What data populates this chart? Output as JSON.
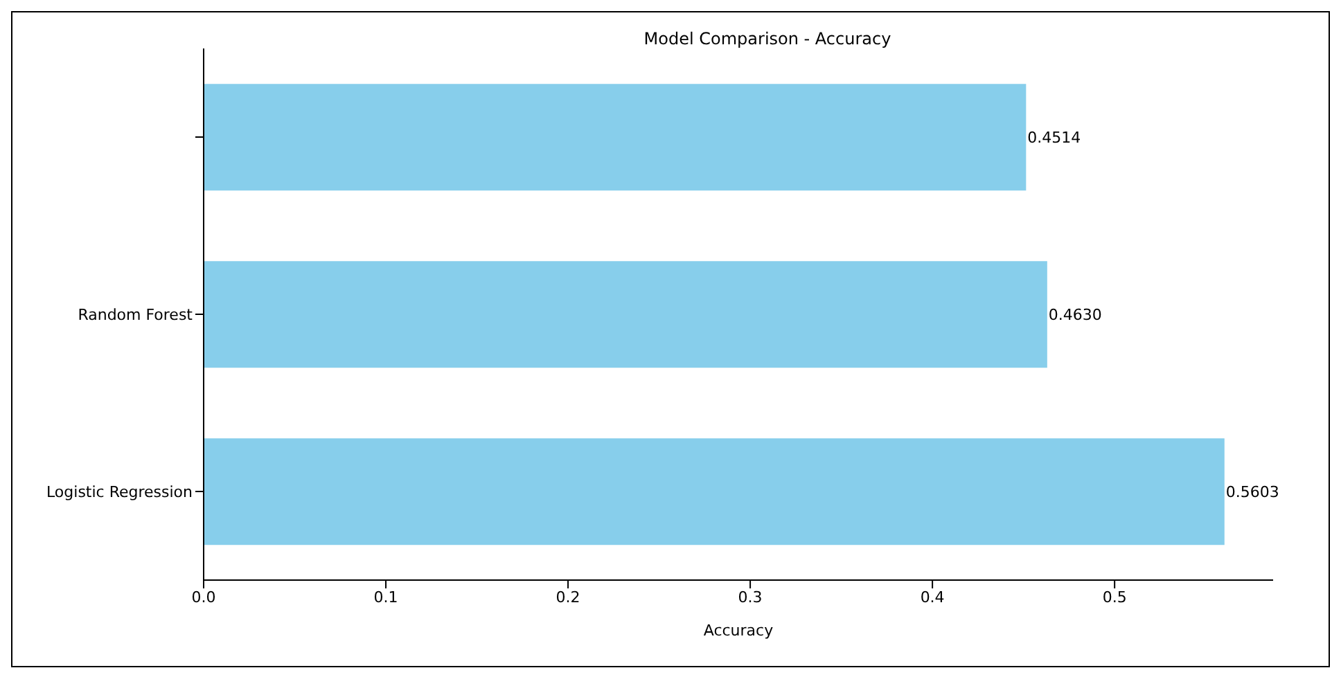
{
  "chart_data": {
    "type": "bar",
    "orientation": "horizontal",
    "title": "Model Comparison - Accuracy",
    "xlabel": "Accuracy",
    "categories": [
      null,
      "Random Forest",
      "Logistic Regression"
    ],
    "values": [
      0.4514,
      0.463,
      0.5603
    ],
    "value_labels": [
      "0.4514",
      "0.4630",
      "0.5603"
    ],
    "color": "#87ceeb",
    "xlim": [
      0,
      0.587
    ],
    "xticks": [
      {
        "value": 0,
        "label": "0.0"
      },
      {
        "value": 0.1,
        "label": "0.1"
      },
      {
        "value": 0.2,
        "label": "0.2"
      },
      {
        "value": 0.3,
        "label": "0.3"
      },
      {
        "value": 0.4,
        "label": "0.4"
      },
      {
        "value": 0.5,
        "label": "0.5"
      }
    ],
    "grid": false,
    "legend": false
  }
}
